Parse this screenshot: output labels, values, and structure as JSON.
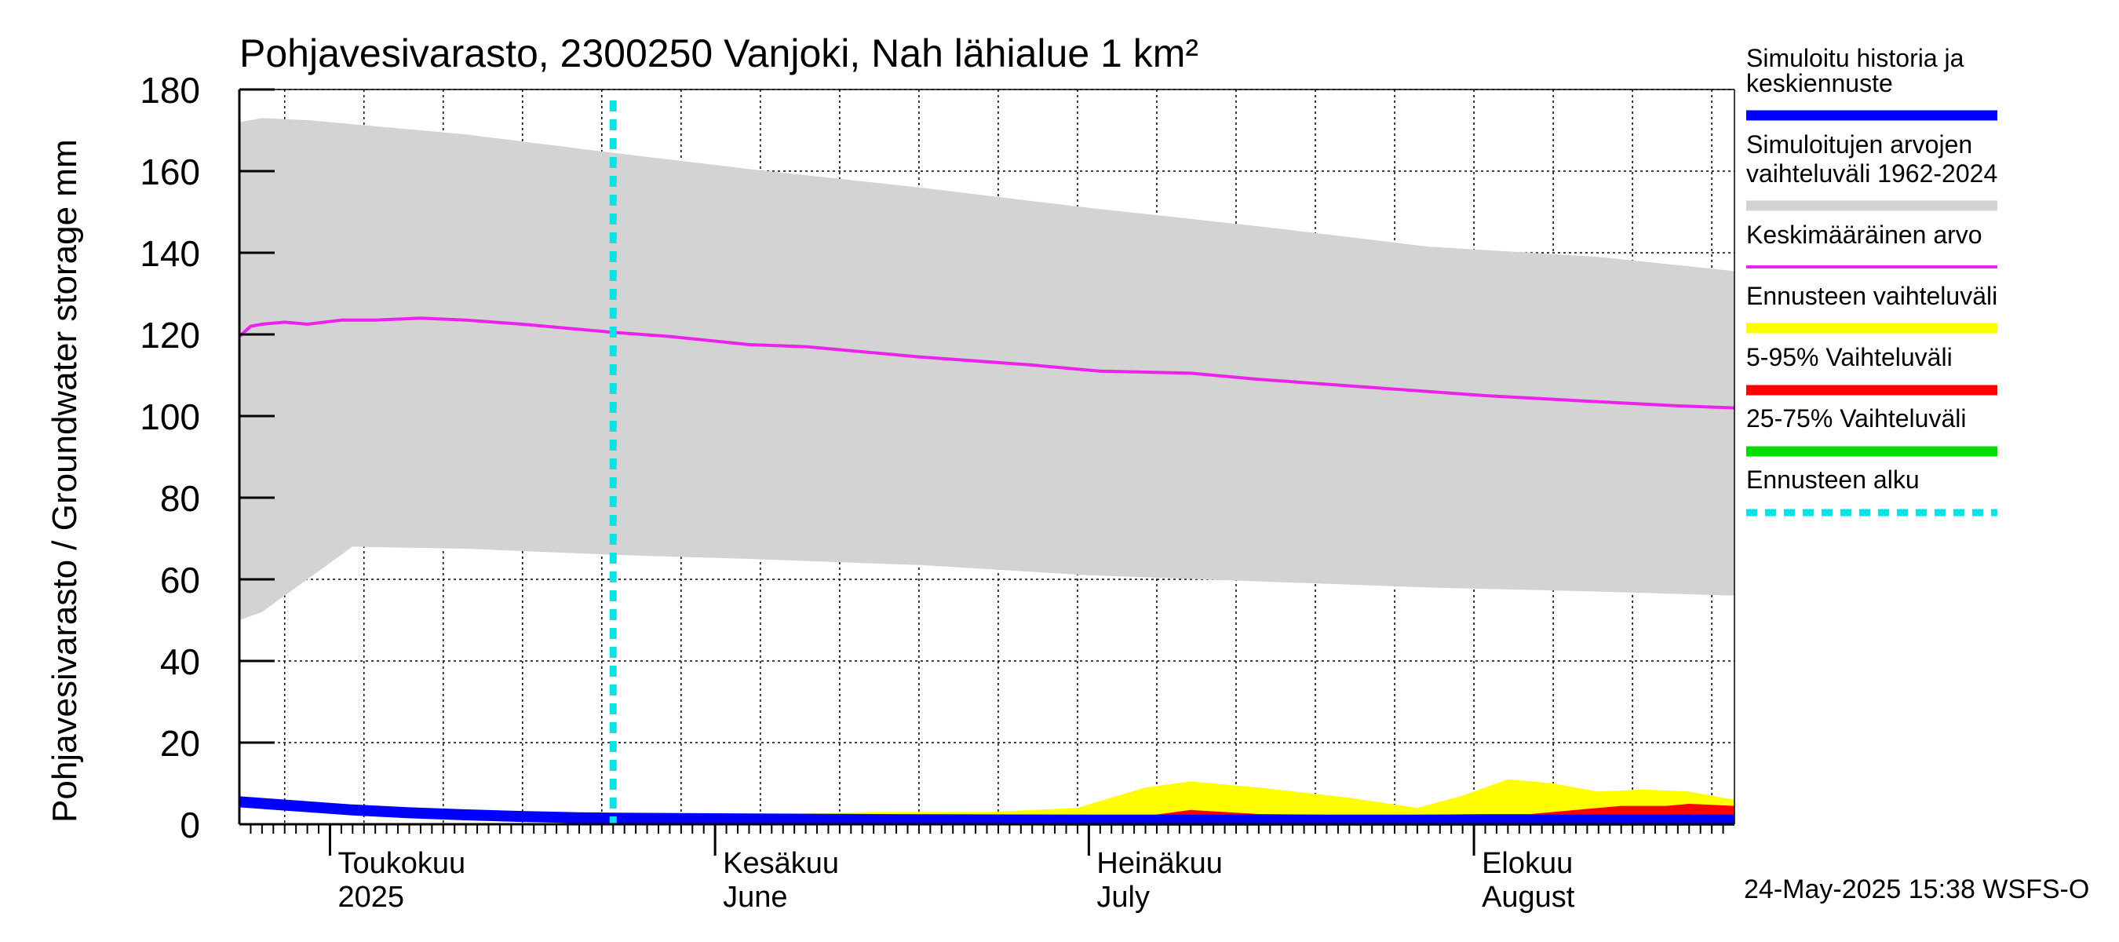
{
  "chart_data": {
    "type": "area",
    "title": "Pohjavesivarasto, 2300250 Vanjoki, Nah lähialue 1 km²",
    "ylabel": "Pohjavesivarasto / Groundwater storage   mm",
    "ylim": [
      0,
      180
    ],
    "yticks": [
      0,
      20,
      40,
      60,
      80,
      100,
      120,
      140,
      160,
      180
    ],
    "xrange_days": [
      0,
      132
    ],
    "month_ticks": [
      {
        "day": 8,
        "label1": "Toukokuu",
        "label2": "2025"
      },
      {
        "day": 42,
        "label1": "Kesäkuu",
        "label2": "June"
      },
      {
        "day": 75,
        "label1": "Heinäkuu",
        "label2": "July"
      },
      {
        "day": 109,
        "label1": "Elokuu",
        "label2": "August"
      }
    ],
    "forecast_start_day": 33,
    "series": [
      {
        "name": "Simuloitujen arvojen vaihteluväli 1962-2024",
        "kind": "band",
        "color": "#d3d3d3",
        "x": [
          0,
          2,
          6,
          10,
          20,
          33,
          45,
          60,
          75,
          90,
          105,
          120,
          132
        ],
        "upper": [
          172,
          173,
          172.5,
          171.5,
          169,
          164.5,
          160.5,
          156,
          151,
          146.5,
          141.5,
          139,
          135.5
        ],
        "lower": [
          50,
          52,
          60,
          68,
          67.5,
          66,
          65,
          63.5,
          61,
          59.5,
          58,
          57,
          56
        ]
      },
      {
        "name": "Keskimääräinen arvo",
        "kind": "line",
        "color": "#ee22ee",
        "x": [
          0,
          1,
          2,
          4,
          6,
          9,
          12,
          16,
          20,
          25,
          33,
          38,
          45,
          50,
          60,
          70,
          76,
          84,
          90,
          100,
          110,
          120,
          127,
          132
        ],
        "y": [
          119.5,
          122,
          122.5,
          123,
          122.5,
          123.5,
          123.5,
          124,
          123.5,
          122.5,
          120.5,
          119.5,
          117.5,
          117,
          114.5,
          112.5,
          111,
          110.5,
          109,
          107,
          105,
          103.5,
          102.5,
          102
        ]
      },
      {
        "name": "Ennusteen vaihteluväli",
        "kind": "band",
        "color": "#ffff00",
        "x": [
          33,
          40,
          48,
          56,
          66,
          74,
          80,
          84,
          90,
          98,
          104,
          108,
          112,
          116,
          120,
          124,
          128,
          132
        ],
        "upper": [
          1.5,
          2,
          2.5,
          3,
          3,
          4,
          9,
          10.5,
          9,
          6.5,
          4,
          7,
          11,
          10,
          8,
          8.5,
          8,
          6
        ],
        "lower": [
          1,
          1,
          1,
          1,
          1,
          1,
          1,
          1,
          1,
          1,
          1,
          1,
          1,
          1,
          1,
          1,
          1,
          1
        ]
      },
      {
        "name": "5-95% Vaihteluväli",
        "kind": "band",
        "color": "#ff0000",
        "x": [
          33,
          70,
          80,
          84,
          90,
          100,
          110,
          114,
          118,
          122,
          126,
          128,
          132
        ],
        "upper": [
          1.2,
          1.5,
          2,
          3.5,
          2.5,
          2.2,
          2.5,
          2.5,
          3.5,
          4.5,
          4.5,
          5,
          4.5
        ],
        "lower": [
          1,
          1,
          1,
          1,
          1,
          1,
          1,
          1,
          1,
          1,
          1,
          1,
          1
        ]
      },
      {
        "name": "25-75% Vaihteluväli",
        "kind": "band",
        "color": "#00dd00",
        "x": [
          33,
          132
        ],
        "upper": [
          1.2,
          1.4
        ],
        "lower": [
          1,
          1
        ]
      },
      {
        "name": "Simuloitu historia ja keskiennuste",
        "kind": "line",
        "color": "#0000ff",
        "x": [
          0,
          5,
          10,
          15,
          20,
          25,
          30,
          33,
          45,
          60,
          80,
          100,
          120,
          132
        ],
        "y": [
          5.5,
          4.5,
          3.5,
          2.8,
          2.3,
          1.9,
          1.6,
          1.5,
          1.3,
          1.1,
          1.0,
          1.0,
          1.0,
          1.0
        ]
      },
      {
        "name": "Ennusteen alku",
        "kind": "vline",
        "color": "#00e5e5",
        "x": [
          33
        ]
      }
    ],
    "legend": [
      {
        "label": "Simuloitu historia ja",
        "label2": "keskiennuste",
        "color": "#0000ff",
        "style": "thick"
      },
      {
        "label": "Simuloitujen arvojen",
        "label2": "vaihteluväli 1962-2024",
        "color": "#d3d3d3",
        "style": "thick"
      },
      {
        "label": "Keskimääräinen arvo",
        "label2": "",
        "color": "#ee22ee",
        "style": "thin"
      },
      {
        "label": "Ennusteen vaihteluväli",
        "label2": "",
        "color": "#ffff00",
        "style": "thick"
      },
      {
        "label": "5-95% Vaihteluväli",
        "label2": "",
        "color": "#ff0000",
        "style": "thick"
      },
      {
        "label": "25-75% Vaihteluväli",
        "label2": "",
        "color": "#00dd00",
        "style": "thick"
      },
      {
        "label": "Ennusteen alku",
        "label2": "",
        "color": "#00e5e5",
        "style": "dashed"
      }
    ],
    "footer": "24-May-2025 15:38 WSFS-O"
  }
}
